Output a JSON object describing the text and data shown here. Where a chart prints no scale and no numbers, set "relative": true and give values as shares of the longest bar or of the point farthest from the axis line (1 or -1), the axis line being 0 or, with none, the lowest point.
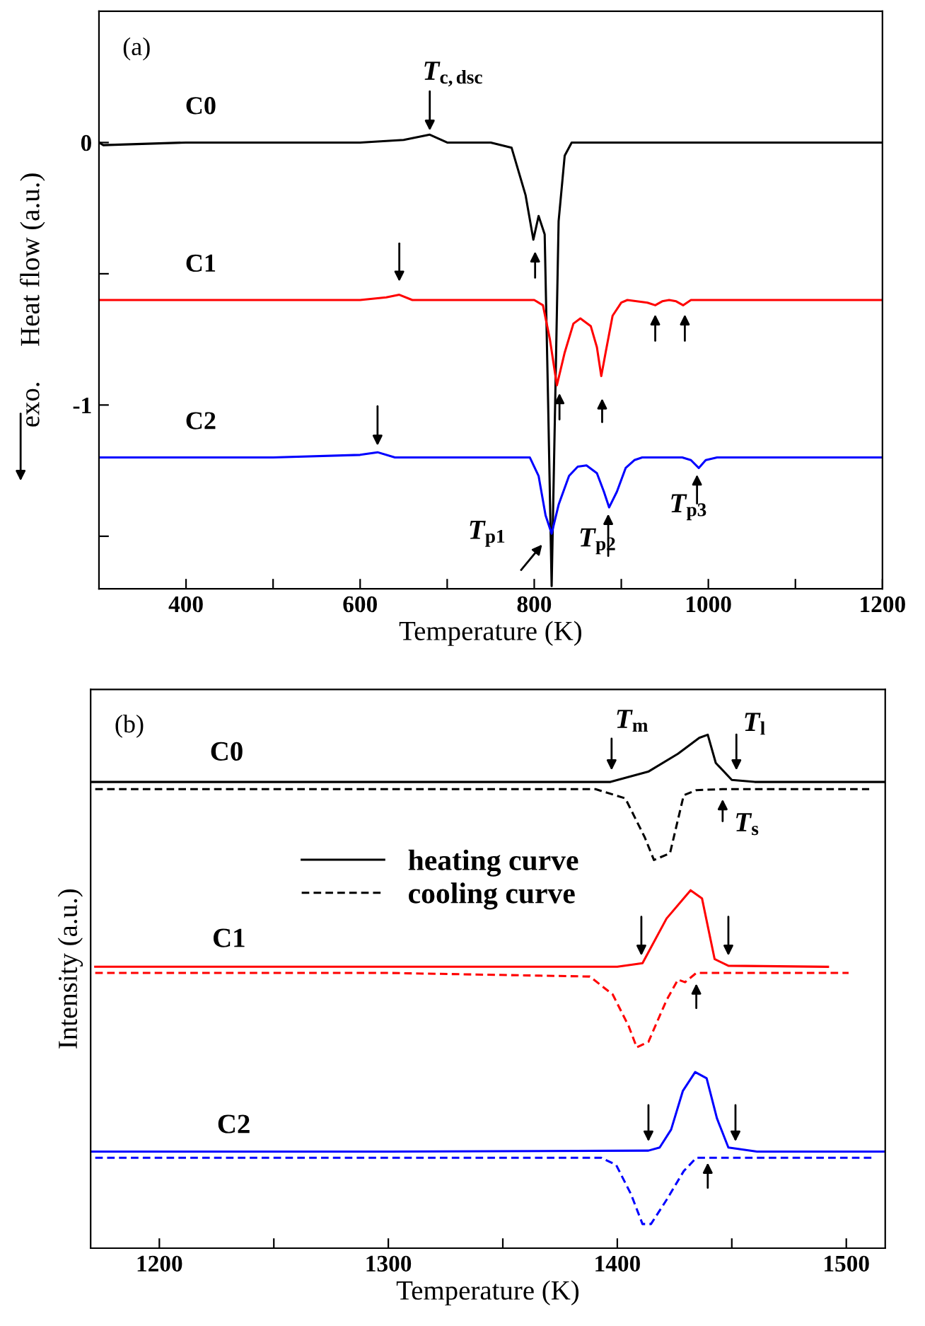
{
  "chart_data": [
    {
      "type": "line",
      "xlabel": "Temperature (K)",
      "ylabel": "exo.     Heat flow (a.u.)",
      "xlim": [
        300,
        1200
      ],
      "xticks": [
        400,
        {
          "value": 500,
          "label": null
        },
        600,
        {
          "value": 700,
          "label": null
        },
        800,
        {
          "value": 900,
          "label": null
        },
        1000,
        {
          "value": 1100,
          "label": null
        },
        1200
      ],
      "ylim": [
        -1.7,
        0.5
      ],
      "yticks": [
        {
          "value": -1.5,
          "label": null
        },
        -1,
        {
          "value": -0.5,
          "label": null
        },
        0
      ],
      "series": [
        {
          "name": "C0",
          "color": "#000000",
          "x": [
            300,
            305,
            400,
            500,
            600,
            650,
            680,
            700,
            750,
            774,
            790,
            799,
            805,
            810,
            812,
            816,
            820,
            824,
            828,
            835,
            843,
            900,
            1000,
            1100,
            1200
          ],
          "values": [
            0,
            -0.01,
            0,
            0,
            0,
            0.01,
            0.03,
            0,
            0,
            -0.02,
            -0.2,
            -0.37,
            -0.28,
            -0.33,
            -0.35,
            -1.0,
            -1.69,
            -1.0,
            -0.3,
            -0.05,
            0,
            0,
            0,
            0,
            0
          ]
        },
        {
          "name": "C1",
          "color": "#ff0000",
          "x": [
            300,
            400,
            500,
            600,
            630,
            645,
            660,
            700,
            800,
            810,
            818,
            826,
            835,
            845,
            853,
            865,
            872,
            877,
            882,
            890,
            900,
            907,
            930,
            939,
            947,
            955,
            963,
            971,
            980,
            1000,
            1100,
            1200
          ],
          "values": [
            -0.6,
            -0.6,
            -0.6,
            -0.6,
            -0.59,
            -0.58,
            -0.6,
            -0.6,
            -0.6,
            -0.62,
            -0.75,
            -0.925,
            -0.8,
            -0.69,
            -0.67,
            -0.7,
            -0.78,
            -0.89,
            -0.8,
            -0.66,
            -0.61,
            -0.6,
            -0.61,
            -0.62,
            -0.605,
            -0.6,
            -0.605,
            -0.62,
            -0.6,
            -0.6,
            -0.6,
            -0.6
          ]
        },
        {
          "name": "C2",
          "color": "#0000ff",
          "x": [
            300,
            400,
            500,
            600,
            620,
            640,
            700,
            795,
            805,
            813,
            820,
            828,
            840,
            850,
            860,
            872,
            880,
            886,
            895,
            905,
            915,
            924,
            970,
            980,
            989,
            997,
            1010,
            1100,
            1200
          ],
          "values": [
            -1.2,
            -1.2,
            -1.2,
            -1.19,
            -1.18,
            -1.2,
            -1.2,
            -1.2,
            -1.27,
            -1.42,
            -1.49,
            -1.38,
            -1.27,
            -1.235,
            -1.23,
            -1.26,
            -1.33,
            -1.39,
            -1.33,
            -1.24,
            -1.21,
            -1.2,
            -1.2,
            -1.21,
            -1.24,
            -1.21,
            -1.2,
            -1.2,
            -1.2
          ]
        }
      ],
      "annotations": [
        "(a)",
        "T$_{c,dsc}$",
        "T$_{p1}$",
        "T$_{p2}$",
        "T$_{p3}$"
      ]
    },
    {
      "type": "line",
      "relative": true,
      "xlabel": "Temperature (K)",
      "ylabel": "Intensity (a.u.)",
      "tick_labels": "x",
      "legend": "center",
      "xlim": [
        1170,
        1517
      ],
      "xticks": [
        1200,
        {
          "value": 1250,
          "label": null
        },
        1300,
        {
          "value": 1350,
          "label": null
        },
        1400,
        {
          "value": 1450,
          "label": null
        },
        1500
      ],
      "series": [
        {
          "name": "heating curve",
          "color": "#000000",
          "line_style": "solid",
          "x": [
            1170,
            1300,
            1397,
            1413.5,
            1426.5,
            1435.8,
            1439.5,
            1443,
            1450,
            1460,
            1517
          ],
          "values": [
            0.908,
            0.908,
            0.908,
            0.928,
            0.963,
            0.994,
            1.0,
            0.945,
            0.912,
            0.908,
            0.908
          ]
        },
        {
          "name": "cooling curve",
          "color": "#000000",
          "line_style": "dashed",
          "x": [
            1172,
            1300,
            1390.5,
            1403.5,
            1412,
            1416,
            1423,
            1429,
            1434.5,
            1446,
            1510
          ],
          "values": [
            0.894,
            0.894,
            0.894,
            0.876,
            0.8,
            0.756,
            0.769,
            0.882,
            0.892,
            0.894,
            0.894
          ]
        },
        {
          "color": "#ff0000",
          "line_style": "solid",
          "x": [
            1172,
            1300,
            1400,
            1411,
            1421.5,
            1432,
            1437,
            1442.5,
            1448.5,
            1492
          ],
          "values": [
            0.548,
            0.548,
            0.548,
            0.555,
            0.642,
            0.697,
            0.681,
            0.563,
            0.55,
            0.548
          ]
        },
        {
          "color": "#ff0000",
          "line_style": "dashed",
          "x": [
            1172,
            1300,
            1388,
            1398,
            1405,
            1408.5,
            1413.6,
            1421.5,
            1426.5,
            1429.6,
            1434.5,
            1501
          ],
          "values": [
            0.536,
            0.536,
            0.529,
            0.494,
            0.432,
            0.391,
            0.402,
            0.483,
            0.523,
            0.518,
            0.536,
            0.536
          ]
        },
        {
          "color": "#0000ff",
          "line_style": "solid",
          "x": [
            1170,
            1300,
            1413.6,
            1418.5,
            1423.5,
            1428.6,
            1434,
            1439,
            1443.5,
            1448.5,
            1461,
            1517
          ],
          "values": [
            0.188,
            0.188,
            0.19,
            0.196,
            0.231,
            0.306,
            0.343,
            0.331,
            0.253,
            0.196,
            0.188,
            0.188
          ]
        },
        {
          "color": "#0000ff",
          "line_style": "dashed",
          "x": [
            1172,
            1300,
            1393,
            1399.5,
            1406,
            1411,
            1414.7,
            1421.5,
            1429,
            1434.5,
            1512
          ],
          "values": [
            0.176,
            0.176,
            0.176,
            0.162,
            0.105,
            0.047,
            0.047,
            0.094,
            0.15,
            0.176,
            0.176
          ]
        }
      ],
      "annotations": [
        "(b)",
        "C0",
        "C1",
        "C2",
        "T$_{m}$",
        "T$_{l}$",
        "T$_{s}$"
      ]
    }
  ]
}
